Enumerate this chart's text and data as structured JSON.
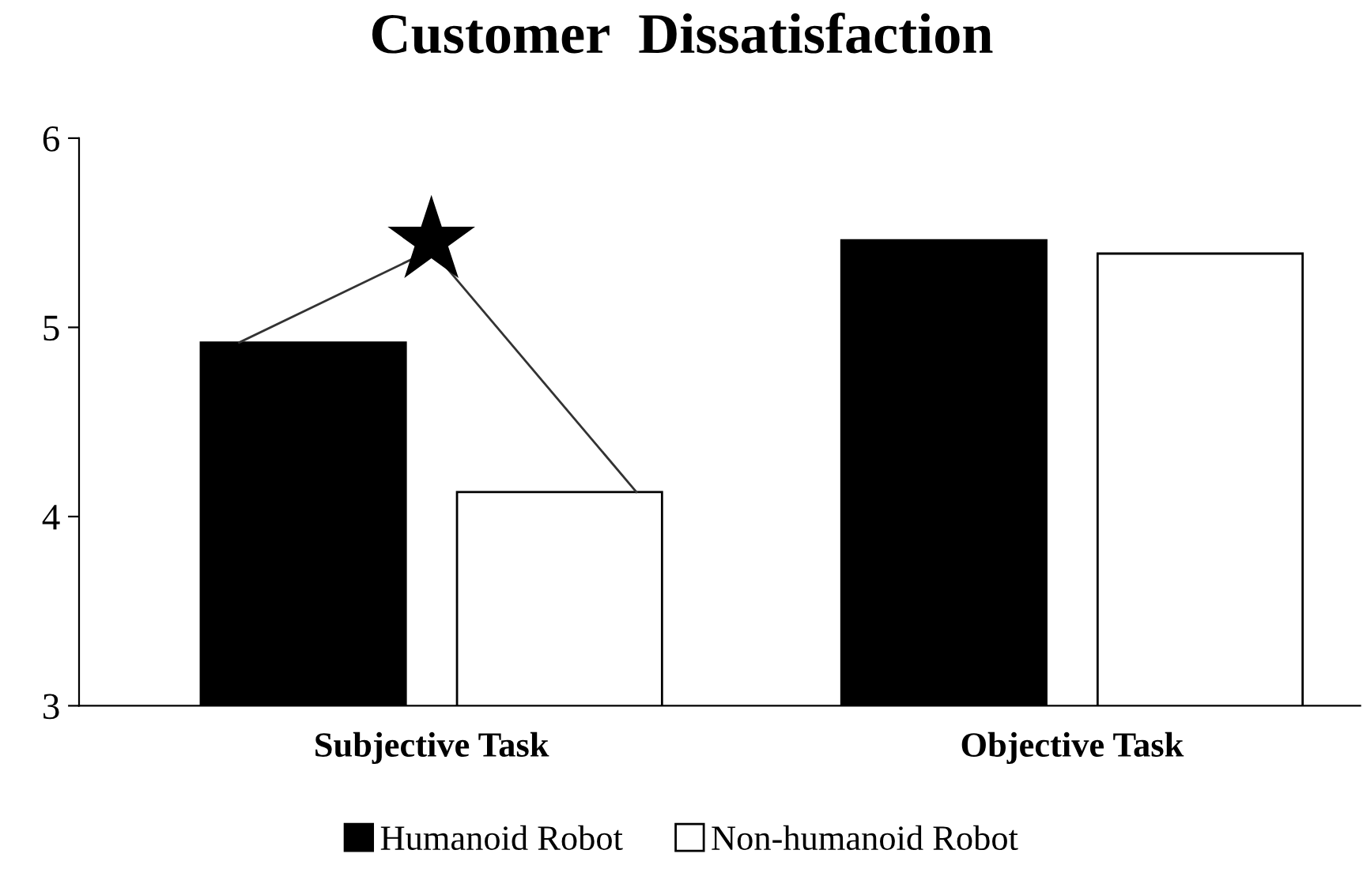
{
  "chart_data": {
    "type": "bar",
    "title": "Customer  Dissatisfaction",
    "categories": [
      "Subjective Task",
      "Objective Task"
    ],
    "series": [
      {
        "name": "Humanoid Robot",
        "color": "#000000",
        "values": [
          4.92,
          5.46
        ]
      },
      {
        "name": "Non-humanoid Robot",
        "color": "#ffffff",
        "values": [
          4.13,
          5.39
        ]
      }
    ],
    "ylim": [
      3,
      6
    ],
    "yticks": [
      3,
      4,
      5,
      6
    ],
    "grid": false,
    "legend": "bottom",
    "annotations": [
      "★"
    ]
  }
}
